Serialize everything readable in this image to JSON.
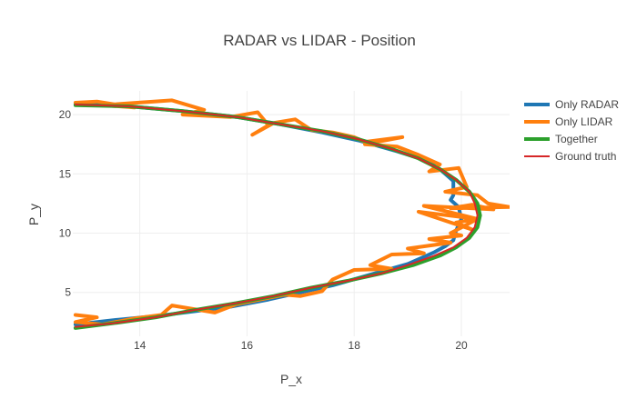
{
  "chart_data": {
    "type": "line",
    "title": "RADAR vs LIDAR - Position",
    "xlabel": "P_x",
    "ylabel": "P_y",
    "xlim": [
      12.75,
      20.9
    ],
    "ylim": [
      1.3,
      22.0
    ],
    "x_ticks": [
      14,
      16,
      18,
      20
    ],
    "y_ticks": [
      5,
      10,
      15,
      20
    ],
    "grid": true,
    "legend_position": "top-right",
    "colors": {
      "radar": "#1f77b4",
      "lidar": "#ff7f0e",
      "together": "#2ca02c",
      "truth": "#d62728",
      "grid": "#eeeeee",
      "text": "#444444"
    },
    "series": [
      {
        "name": "Only RADAR",
        "color": "#1f77b4",
        "width": 4,
        "x": [
          12.8,
          13.8,
          14.8,
          15.8,
          16.6,
          17.4,
          18.1,
          18.8,
          19.3,
          19.6,
          19.85,
          19.85,
          19.8,
          19.95,
          20.0,
          19.9,
          19.85,
          19.7,
          19.5,
          19.0,
          18.3,
          17.6,
          17.0,
          16.4,
          15.7,
          15.0,
          14.3,
          13.6,
          12.8
        ],
        "y": [
          20.9,
          20.7,
          20.3,
          19.8,
          19.2,
          18.5,
          17.8,
          16.9,
          16.2,
          15.4,
          14.4,
          13.2,
          12.8,
          12.2,
          11.2,
          10.2,
          9.4,
          8.9,
          8.4,
          7.4,
          6.5,
          5.6,
          5.0,
          4.4,
          3.8,
          3.4,
          3.0,
          2.7,
          2.3
        ]
      },
      {
        "name": "Only LIDAR",
        "color": "#ff7f0e",
        "width": 4,
        "x": [
          12.8,
          13.2,
          13.9,
          13.3,
          14.6,
          15.2,
          14.8,
          15.7,
          16.2,
          16.4,
          16.1,
          16.5,
          16.9,
          17.2,
          17.6,
          18.0,
          18.2,
          18.9,
          18.2,
          18.8,
          19.2,
          19.6,
          19.4,
          19.95,
          20.1,
          19.7,
          20.3,
          20.5,
          20.9,
          19.8,
          20.2,
          20.6,
          19.3,
          20.3,
          19.2,
          20.2,
          19.9,
          20.3,
          19.8,
          20.0,
          19.4,
          19.8,
          19.0,
          19.3,
          18.7,
          18.3,
          18.7,
          18.0,
          17.6,
          17.4,
          17.0,
          16.7,
          15.8,
          15.4,
          15.0,
          14.6,
          14.4,
          13.9,
          13.3,
          12.8,
          13.2,
          12.8
        ],
        "y": [
          21.0,
          21.1,
          20.6,
          20.8,
          21.2,
          20.4,
          20.0,
          19.8,
          20.2,
          19.1,
          18.3,
          19.3,
          19.6,
          18.7,
          18.5,
          18.1,
          17.7,
          18.1,
          17.5,
          17.3,
          16.6,
          15.8,
          15.2,
          15.5,
          13.9,
          13.5,
          13.2,
          12.5,
          12.2,
          12.1,
          12.4,
          12.0,
          12.3,
          11.2,
          11.8,
          10.3,
          10.9,
          11.2,
          10.0,
          9.8,
          9.5,
          9.2,
          8.7,
          8.3,
          8.2,
          7.3,
          7.0,
          6.9,
          6.1,
          5.1,
          4.7,
          4.8,
          4.0,
          3.3,
          3.6,
          3.9,
          3.1,
          2.8,
          2.3,
          2.5,
          2.9,
          3.1
        ]
      },
      {
        "name": "Together",
        "color": "#2ca02c",
        "width": 4,
        "x": [
          12.8,
          13.8,
          14.8,
          15.8,
          16.6,
          17.4,
          18.1,
          18.7,
          19.2,
          19.6,
          19.9,
          20.15,
          20.3,
          20.35,
          20.3,
          20.15,
          19.9,
          19.6,
          19.1,
          18.5,
          17.9,
          17.2,
          16.5,
          15.8,
          15.0,
          14.3,
          13.5,
          12.8
        ],
        "y": [
          20.8,
          20.7,
          20.3,
          19.8,
          19.2,
          18.6,
          17.9,
          17.1,
          16.3,
          15.4,
          14.5,
          13.5,
          12.5,
          11.5,
          10.5,
          9.6,
          8.8,
          8.1,
          7.3,
          6.6,
          6.0,
          5.4,
          4.7,
          4.1,
          3.5,
          2.9,
          2.4,
          2.0
        ]
      },
      {
        "name": "Ground truth",
        "color": "#d62728",
        "width": 2,
        "x": [
          12.8,
          13.8,
          14.8,
          15.8,
          16.6,
          17.4,
          18.1,
          18.7,
          19.2,
          19.6,
          19.9,
          20.15,
          20.25,
          20.3,
          20.25,
          20.1,
          19.85,
          19.5,
          19.0,
          18.5,
          17.9,
          17.2,
          16.5,
          15.8,
          15.0,
          14.3,
          13.5,
          12.8
        ],
        "y": [
          20.85,
          20.7,
          20.3,
          19.8,
          19.2,
          18.6,
          17.9,
          17.1,
          16.3,
          15.4,
          14.5,
          13.5,
          12.5,
          11.5,
          10.5,
          9.6,
          8.8,
          8.1,
          7.3,
          6.6,
          6.0,
          5.4,
          4.7,
          4.1,
          3.5,
          2.9,
          2.4,
          2.1
        ]
      }
    ]
  }
}
